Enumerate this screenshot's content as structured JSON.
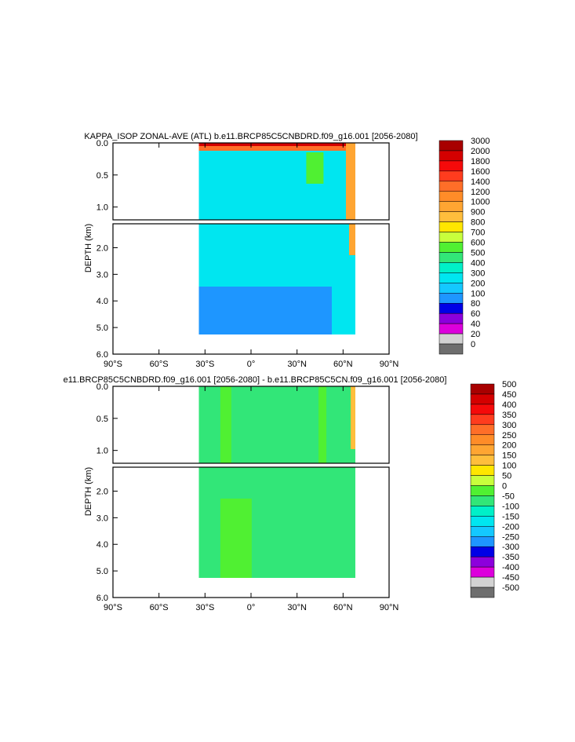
{
  "chart_data": [
    {
      "type": "heatmap",
      "title": "KAPPA_ISOP ZONAL-AVE (ATL) b.e11.BRCP85C5CNBDRD.f09_g16.001 [2056-2080]",
      "ylabel": "DEPTH (km)",
      "x_ticks": [
        "90°S",
        "60°S",
        "30°S",
        "0°",
        "30°N",
        "60°N",
        "90°N"
      ],
      "x_values": [
        -90,
        -60,
        -30,
        0,
        30,
        60,
        90
      ],
      "y_ticks_upper": [
        "0.0",
        "0.5",
        "1.0"
      ],
      "y_ticks_lower": [
        "2.0",
        "3.0",
        "4.0",
        "5.0",
        "6.0"
      ],
      "ylim": [
        0,
        6
      ],
      "data_lat_range": [
        -34,
        68
      ],
      "colorbar": {
        "labels": [
          "3000",
          "2000",
          "1800",
          "1600",
          "1400",
          "1200",
          "1000",
          "900",
          "800",
          "700",
          "600",
          "500",
          "400",
          "300",
          "200",
          "100",
          "80",
          "60",
          "40",
          "20",
          "0"
        ],
        "colors": [
          "#a80000",
          "#d40000",
          "#f50a0a",
          "#ff3c1e",
          "#ff6e28",
          "#ff8c28",
          "#ffa532",
          "#ffbe3c",
          "#ffe600",
          "#c8ff3c",
          "#50f032",
          "#32e678",
          "#00f0c8",
          "#00e6f0",
          "#14c8ff",
          "#1e96ff",
          "#0000e6",
          "#8c00dc",
          "#dc00dc",
          "#d2d2d2",
          "#6e6e6e"
        ]
      },
      "field_description": "bottom-most level value ~200-300 over most of basin; high values >1000 in upper 100 m; northern high latitudes 700-1600"
    },
    {
      "type": "heatmap",
      "title": "e11.BRCP85C5CNBDRD.f09_g16.001 [2056-2080] - b.e11.BRCP85C5CN.f09_g16.001 [2056-2080]",
      "ylabel": "DEPTH (km)",
      "x_ticks": [
        "90°S",
        "60°S",
        "30°S",
        "0°",
        "30°N",
        "60°N",
        "90°N"
      ],
      "x_values": [
        -90,
        -60,
        -30,
        0,
        30,
        60,
        90
      ],
      "y_ticks_upper": [
        "0.0",
        "0.5",
        "1.0"
      ],
      "y_ticks_lower": [
        "2.0",
        "3.0",
        "4.0",
        "5.0",
        "6.0"
      ],
      "ylim": [
        0,
        6
      ],
      "data_lat_range": [
        -34,
        68
      ],
      "colorbar": {
        "labels": [
          "500",
          "450",
          "400",
          "350",
          "300",
          "250",
          "200",
          "150",
          "100",
          "50",
          "0",
          "-50",
          "-100",
          "-150",
          "-200",
          "-250",
          "-300",
          "-350",
          "-400",
          "-450",
          "-500"
        ],
        "colors": [
          "#a80000",
          "#d40000",
          "#f50a0a",
          "#ff3c1e",
          "#ff6e28",
          "#ff8c28",
          "#ffa532",
          "#ffbe3c",
          "#ffe600",
          "#c8ff3c",
          "#50f032",
          "#32e678",
          "#00f0c8",
          "#00e6f0",
          "#14c8ff",
          "#1e96ff",
          "#0000e6",
          "#8c00dc",
          "#dc00dc",
          "#d2d2d2",
          "#6e6e6e"
        ]
      },
      "field_description": "difference mostly -50 to 0 across basin, 0 to 50 in bands"
    }
  ]
}
